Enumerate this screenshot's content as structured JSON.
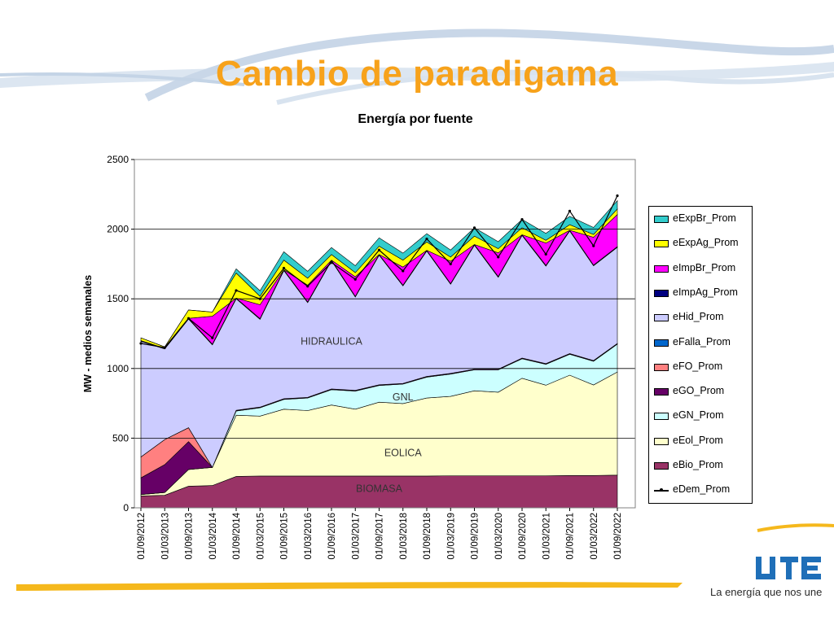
{
  "slide": {
    "title": "Cambio de paradigama",
    "tagline": "La energía que nos une",
    "logo_text": "UTE"
  },
  "colors": {
    "title": "#F7A21B",
    "accent_band": "#F5B81C",
    "swoosh": "#BFD1E6"
  },
  "chart_data": {
    "type": "area",
    "title": "Energía por fuente",
    "xlabel": "",
    "ylabel": "MW - medios semanales",
    "ylim": [
      0,
      2500
    ],
    "yticks": [
      0,
      500,
      1000,
      1500,
      2000,
      2500
    ],
    "grid": "horizontal",
    "legend_position": "right",
    "stacked": true,
    "x": [
      "01/09/2012",
      "01/03/2013",
      "01/09/2013",
      "01/03/2014",
      "01/09/2014",
      "01/03/2015",
      "01/09/2015",
      "01/03/2016",
      "01/09/2016",
      "01/03/2017",
      "01/09/2017",
      "01/03/2018",
      "01/09/2018",
      "01/03/2019",
      "01/09/2019",
      "01/03/2020",
      "01/09/2020",
      "01/03/2021",
      "01/09/2021",
      "01/03/2022",
      "01/09/2022"
    ],
    "series": [
      {
        "name": "eBio_Prom",
        "color": "#993366",
        "values": [
          85,
          90,
          155,
          160,
          225,
          228,
          228,
          228,
          228,
          228,
          228,
          228,
          228,
          230,
          230,
          230,
          230,
          230,
          232,
          232,
          235
        ]
      },
      {
        "name": "eEol_Prom",
        "color": "#FFFFCC",
        "values": [
          10,
          20,
          120,
          130,
          440,
          430,
          480,
          470,
          510,
          480,
          530,
          520,
          560,
          570,
          610,
          600,
          700,
          650,
          720,
          650,
          740
        ]
      },
      {
        "name": "eGN_Prom",
        "color": "#CCFFFF",
        "values": [
          0,
          0,
          0,
          0,
          30,
          60,
          70,
          90,
          110,
          130,
          120,
          140,
          150,
          160,
          150,
          160,
          140,
          150,
          150,
          170,
          200
        ]
      },
      {
        "name": "eGO_Prom",
        "color": "#660066",
        "values": [
          120,
          200,
          200,
          0,
          5,
          5,
          5,
          5,
          5,
          5,
          5,
          5,
          5,
          5,
          5,
          5,
          5,
          5,
          5,
          5,
          5
        ]
      },
      {
        "name": "eFO_Prom",
        "color": "#FF8080",
        "values": [
          150,
          180,
          100,
          0,
          0,
          0,
          0,
          0,
          0,
          0,
          0,
          0,
          0,
          0,
          0,
          0,
          0,
          0,
          0,
          0,
          0
        ]
      },
      {
        "name": "eFalla_Prom",
        "color": "#0066CC",
        "values": [
          0,
          0,
          0,
          0,
          0,
          0,
          0,
          0,
          0,
          0,
          0,
          0,
          0,
          0,
          0,
          0,
          0,
          0,
          0,
          0,
          0
        ]
      },
      {
        "name": "eHid_Prom",
        "color": "#CCCCFF",
        "values": [
          830,
          650,
          780,
          880,
          800,
          630,
          920,
          680,
          920,
          670,
          930,
          700,
          900,
          640,
          890,
          660,
          880,
          700,
          880,
          680,
          690
        ]
      },
      {
        "name": "eImpAg_Prom",
        "color": "#000080",
        "values": [
          5,
          5,
          5,
          5,
          5,
          5,
          5,
          5,
          5,
          5,
          5,
          5,
          5,
          5,
          5,
          5,
          5,
          5,
          5,
          5,
          5
        ]
      },
      {
        "name": "eImpBr_Prom",
        "color": "#FF00FF",
        "values": [
          0,
          0,
          0,
          200,
          0,
          100,
          0,
          120,
          0,
          140,
          0,
          130,
          0,
          160,
          0,
          170,
          0,
          160,
          0,
          200,
          230
        ]
      },
      {
        "name": "eExpAg_Prom",
        "color": "#FFFF00",
        "values": [
          20,
          10,
          60,
          30,
          180,
          60,
          70,
          50,
          40,
          30,
          60,
          50,
          60,
          30,
          60,
          30,
          50,
          20,
          40,
          20,
          40
        ]
      },
      {
        "name": "eExpBr_Prom",
        "color": "#33CCCC",
        "values": [
          0,
          0,
          0,
          0,
          30,
          40,
          60,
          50,
          50,
          50,
          60,
          50,
          60,
          50,
          60,
          50,
          60,
          50,
          60,
          50,
          60
        ]
      }
    ],
    "demand": {
      "name": "eDem_Prom",
      "color": "#000000",
      "values": [
        1180,
        1150,
        1360,
        1220,
        1560,
        1500,
        1720,
        1590,
        1760,
        1640,
        1850,
        1700,
        1930,
        1750,
        2010,
        1800,
        2070,
        1820,
        2130,
        1880,
        2240
      ]
    },
    "legend_order": [
      "eExpBr_Prom",
      "eExpAg_Prom",
      "eImpBr_Prom",
      "eImpAg_Prom",
      "eHid_Prom",
      "eFalla_Prom",
      "eFO_Prom",
      "eGO_Prom",
      "eGN_Prom",
      "eEol_Prom",
      "eBio_Prom",
      "eDem_Prom"
    ],
    "annotations": [
      {
        "text": "HIDRAULICA",
        "x": "01/09/2016",
        "y": 1170
      },
      {
        "text": "GNL",
        "x": "01/03/2018",
        "y": 770
      },
      {
        "text": "EOLICA",
        "x": "01/03/2018",
        "y": 370
      },
      {
        "text": "BIOMASA",
        "x": "01/09/2017",
        "y": 115
      }
    ]
  }
}
